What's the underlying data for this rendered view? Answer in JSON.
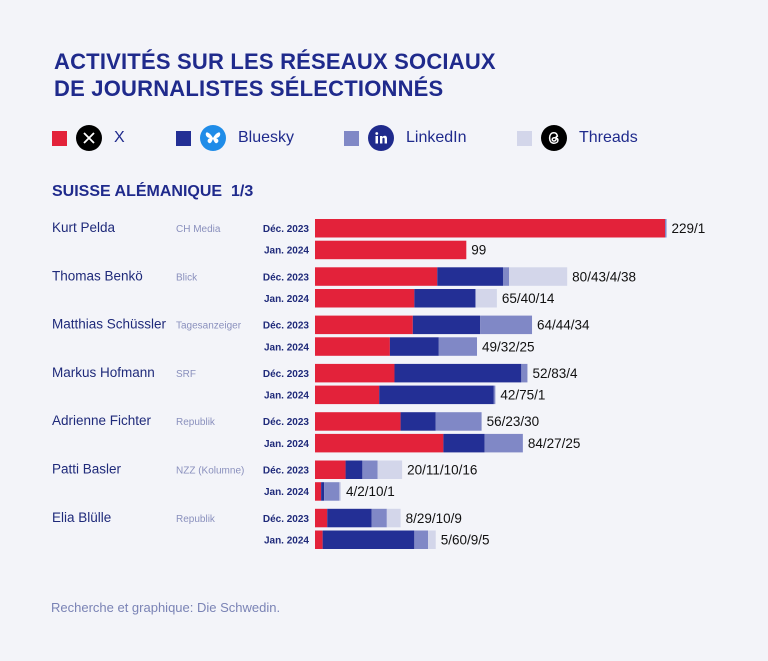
{
  "title_lines": [
    "ACTIVITÉS SUR LES RÉSEAUX SOCIAUX",
    "DE JOURNALISTES SÉLECTIONNÉS"
  ],
  "legend": [
    {
      "label": "X",
      "color": "#e3223a",
      "icon": "x-logo-icon"
    },
    {
      "label": "Bluesky",
      "color": "#232f95",
      "icon": "bluesky-butterfly-icon"
    },
    {
      "label": "LinkedIn",
      "color": "#8088c6",
      "icon": "linkedin-icon"
    },
    {
      "label": "Threads",
      "color": "#d3d6ea",
      "icon": "threads-icon"
    }
  ],
  "section_title": "SUISSE ALÉMANIQUE  1/3",
  "footer": "Recherche et graphique: Die Schwedin.",
  "chart_data": {
    "type": "bar",
    "orientation": "horizontal",
    "stacked": true,
    "series_names": [
      "X",
      "Bluesky",
      "LinkedIn",
      "Threads"
    ],
    "series_colors": [
      "#e3223a",
      "#232f95",
      "#8088c6",
      "#d3d6ea"
    ],
    "xlim": [
      0,
      229
    ],
    "grid": false,
    "journalists": [
      {
        "name": "Kurt Pelda",
        "outlet": "CH Media",
        "rows": [
          {
            "period": "Déc. 2023",
            "values": [
              229,
              0,
              1,
              0
            ],
            "label": "229/1"
          },
          {
            "period": "Jan. 2024",
            "values": [
              99,
              0,
              0,
              0
            ],
            "label": "99"
          }
        ]
      },
      {
        "name": "Thomas Benkö",
        "outlet": "Blick",
        "rows": [
          {
            "period": "Déc. 2023",
            "values": [
              80,
              43,
              4,
              38
            ],
            "label": "80/43/4/38"
          },
          {
            "period": "Jan. 2024",
            "values": [
              65,
              40,
              0,
              14
            ],
            "label": "65/40/14"
          }
        ]
      },
      {
        "name": "Matthias Schüssler",
        "outlet": "Tagesanzeiger",
        "rows": [
          {
            "period": "Déc. 2023",
            "values": [
              64,
              44,
              34,
              0
            ],
            "label": "64/44/34"
          },
          {
            "period": "Jan. 2024",
            "values": [
              49,
              32,
              25,
              0
            ],
            "label": "49/32/25"
          }
        ]
      },
      {
        "name": "Markus Hofmann",
        "outlet": "SRF",
        "rows": [
          {
            "period": "Déc. 2023",
            "values": [
              52,
              83,
              4,
              0
            ],
            "label": "52/83/4"
          },
          {
            "period": "Jan. 2024",
            "values": [
              42,
              75,
              1,
              0
            ],
            "label": "42/75/1"
          }
        ]
      },
      {
        "name": "Adrienne Fichter",
        "outlet": "Republik",
        "rows": [
          {
            "period": "Déc. 2023",
            "values": [
              56,
              23,
              30,
              0
            ],
            "label": "56/23/30"
          },
          {
            "period": "Jan. 2024",
            "values": [
              84,
              27,
              25,
              0
            ],
            "label": "84/27/25"
          }
        ]
      },
      {
        "name": "Patti Basler",
        "outlet": "NZZ (Kolumne)",
        "rows": [
          {
            "period": "Déc. 2023",
            "values": [
              20,
              11,
              10,
              16
            ],
            "label": "20/11/10/16"
          },
          {
            "period": "Jan. 2024",
            "values": [
              4,
              2,
              10,
              1
            ],
            "label": "4/2/10/1"
          }
        ]
      },
      {
        "name": "Elia Blülle",
        "outlet": "Republik",
        "rows": [
          {
            "period": "Déc. 2023",
            "values": [
              8,
              29,
              10,
              9
            ],
            "label": "8/29/10/9"
          },
          {
            "period": "Jan. 2024",
            "values": [
              5,
              60,
              9,
              5
            ],
            "label": "5/60/9/5"
          }
        ]
      }
    ]
  }
}
